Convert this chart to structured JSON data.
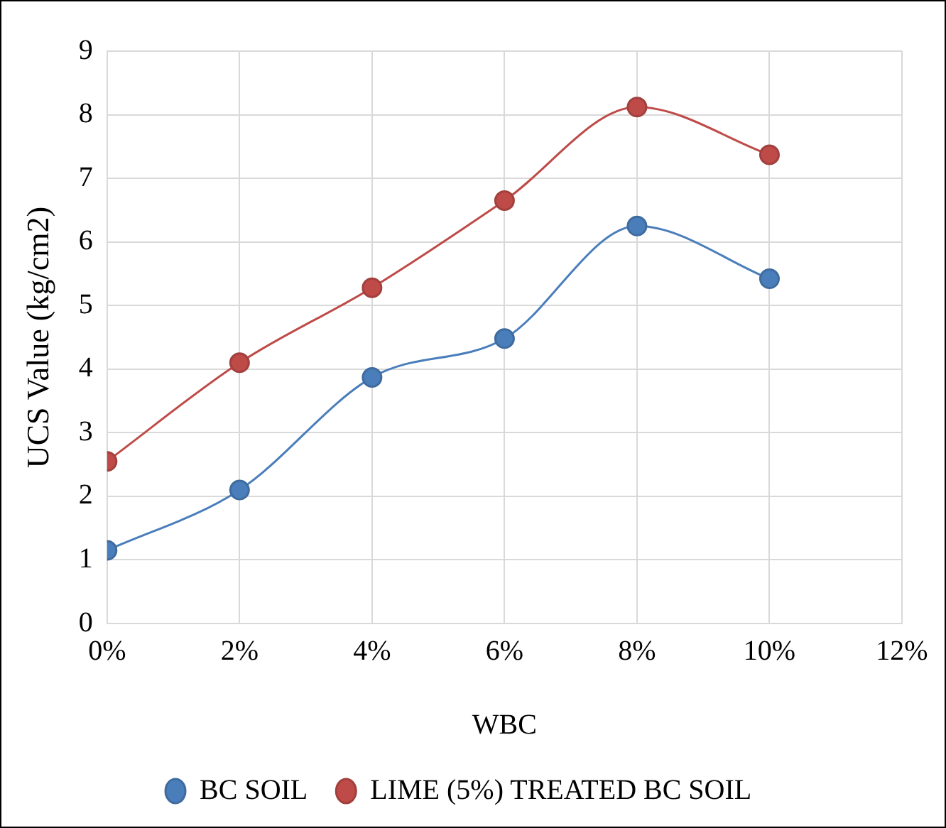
{
  "chart_data": {
    "type": "line",
    "xlabel": "WBC",
    "ylabel": "UCS Value (kg/cm2)",
    "x": [
      0,
      2,
      4,
      6,
      8,
      10
    ],
    "xlim": [
      0,
      12
    ],
    "xticks": [
      {
        "value": 0,
        "label": "0%"
      },
      {
        "value": 2,
        "label": "2%"
      },
      {
        "value": 4,
        "label": "4%"
      },
      {
        "value": 6,
        "label": "6%"
      },
      {
        "value": 8,
        "label": "8%"
      },
      {
        "value": 10,
        "label": "10%"
      },
      {
        "value": 12,
        "label": "12%"
      }
    ],
    "ylim": [
      0,
      9
    ],
    "yticks": [
      0,
      1,
      2,
      3,
      4,
      5,
      6,
      7,
      8,
      9
    ],
    "series": [
      {
        "name": "BC SOIL",
        "color": "#4a7ebb",
        "values": [
          1.15,
          2.1,
          3.87,
          4.48,
          6.25,
          5.42
        ]
      },
      {
        "name": "LIME (5%) TREATED BC SOIL",
        "color": "#be4b48",
        "values": [
          2.55,
          4.1,
          5.28,
          6.65,
          8.12,
          7.37
        ]
      }
    ],
    "grid": true,
    "legend": "bottom",
    "marker": "circle",
    "line_style": "solid"
  }
}
